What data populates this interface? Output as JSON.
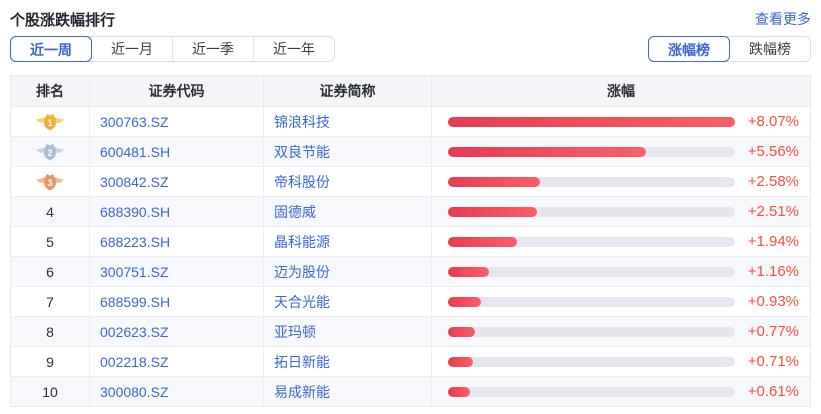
{
  "header": {
    "title": "个股涨跌幅排行",
    "more_link": "查看更多"
  },
  "period_tabs": {
    "items": [
      {
        "label": "近一周",
        "selected": true
      },
      {
        "label": "近一月",
        "selected": false
      },
      {
        "label": "近一季",
        "selected": false
      },
      {
        "label": "近一年",
        "selected": false
      }
    ]
  },
  "board_tabs": {
    "items": [
      {
        "label": "涨幅榜",
        "selected": true
      },
      {
        "label": "跌幅榜",
        "selected": false
      }
    ]
  },
  "table": {
    "columns": [
      "排名",
      "证券代码",
      "证券简称",
      "涨幅"
    ],
    "max_change": 8.07,
    "rows": [
      {
        "rank": 1,
        "medal": "gold",
        "code": "300763.SZ",
        "name": "锦浪科技",
        "change": "+8.07%",
        "value": 8.07
      },
      {
        "rank": 2,
        "medal": "silver",
        "code": "600481.SH",
        "name": "双良节能",
        "change": "+5.56%",
        "value": 5.56
      },
      {
        "rank": 3,
        "medal": "bronze",
        "code": "300842.SZ",
        "name": "帝科股份",
        "change": "+2.58%",
        "value": 2.58
      },
      {
        "rank": 4,
        "medal": null,
        "code": "688390.SH",
        "name": "固德威",
        "change": "+2.51%",
        "value": 2.51
      },
      {
        "rank": 5,
        "medal": null,
        "code": "688223.SH",
        "name": "晶科能源",
        "change": "+1.94%",
        "value": 1.94
      },
      {
        "rank": 6,
        "medal": null,
        "code": "300751.SZ",
        "name": "迈为股份",
        "change": "+1.16%",
        "value": 1.16
      },
      {
        "rank": 7,
        "medal": null,
        "code": "688599.SH",
        "name": "天合光能",
        "change": "+0.93%",
        "value": 0.93
      },
      {
        "rank": 8,
        "medal": null,
        "code": "002623.SZ",
        "name": "亚玛顿",
        "change": "+0.77%",
        "value": 0.77
      },
      {
        "rank": 9,
        "medal": null,
        "code": "002218.SZ",
        "name": "拓日新能",
        "change": "+0.71%",
        "value": 0.71
      },
      {
        "rank": 10,
        "medal": null,
        "code": "300080.SZ",
        "name": "易成新能",
        "change": "+0.61%",
        "value": 0.61
      }
    ]
  },
  "colors": {
    "accent_blue": "#3a66d6",
    "percent_red": "#f94f3d",
    "bar_gradient_start": "#e73b52",
    "bar_gradient_end": "#fb5f66",
    "bar_track": "#e5e6ef",
    "medal_gold": "#f3ae3d",
    "medal_gold_light": "#f8d070",
    "medal_silver": "#a9bdd0",
    "medal_silver_light": "#c8d5e1",
    "medal_bronze": "#e8956a",
    "medal_bronze_light": "#f2bb92"
  }
}
